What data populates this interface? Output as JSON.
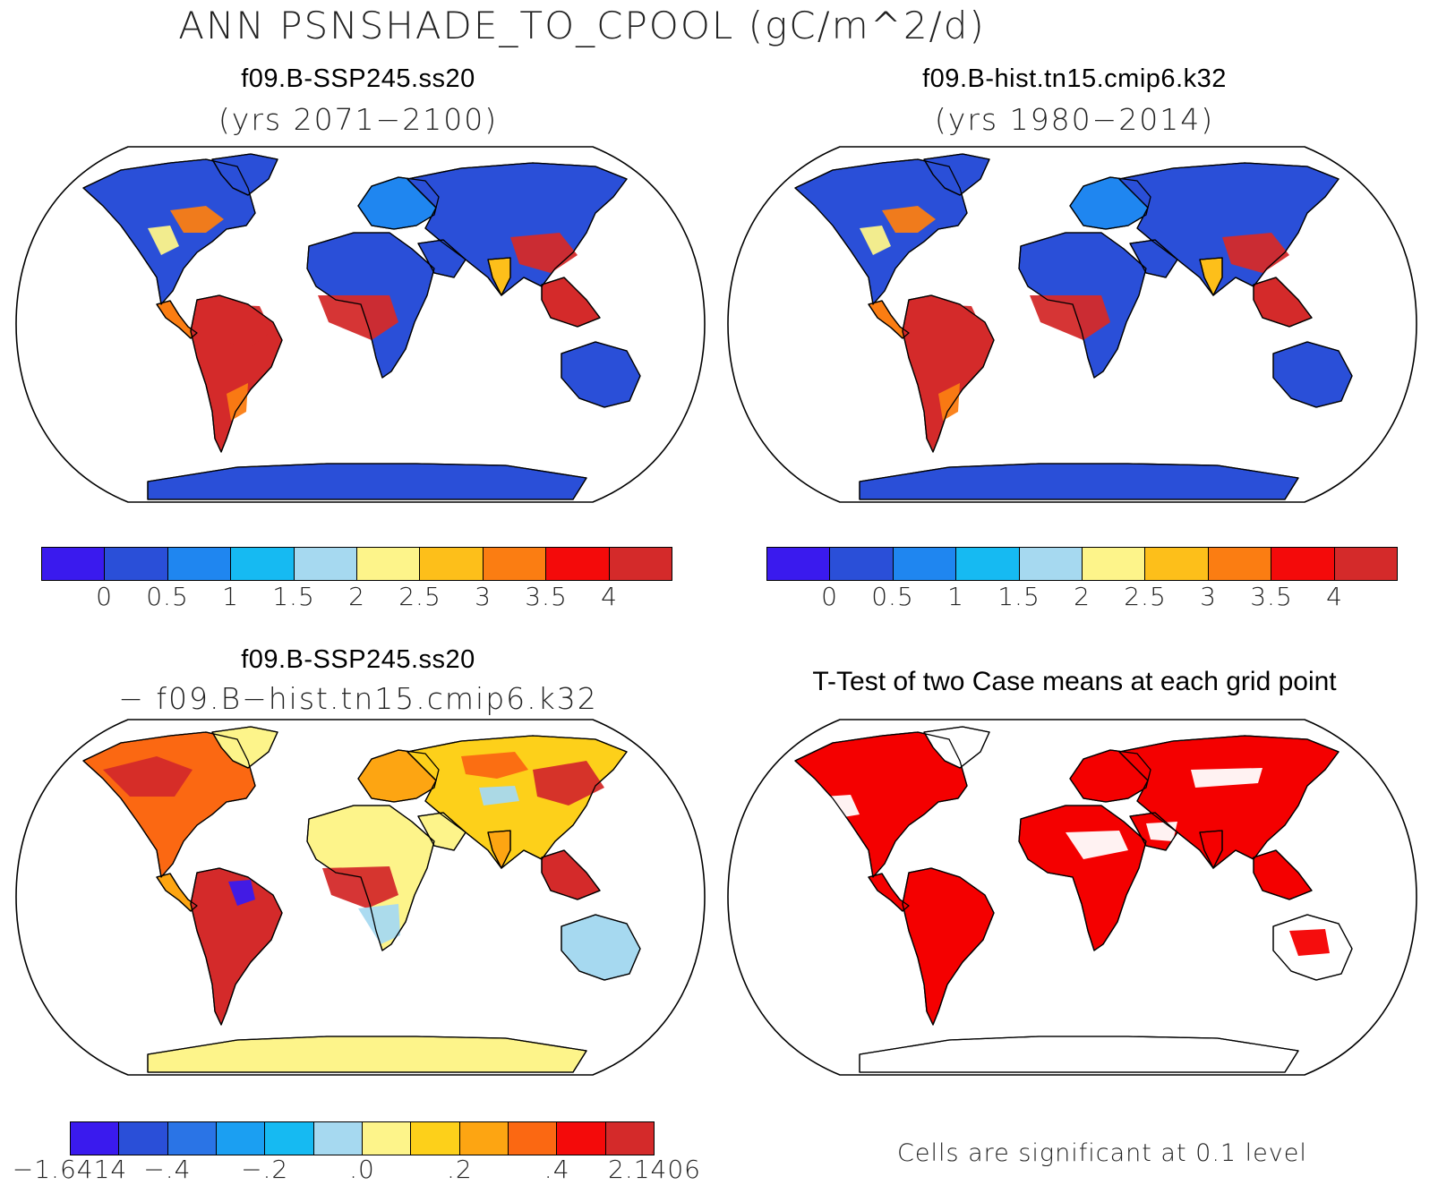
{
  "title": "ANN PSNSHADE_TO_CPOOL (gC/m^2/d)",
  "panels": {
    "top_left": {
      "name": "f09.B-SSP245.ss20",
      "years": "(yrs 2071−2100)"
    },
    "top_right": {
      "name": "f09.B-hist.tn15.cmip6.k32",
      "years": "(yrs 1980−2014)"
    },
    "bottom_left": {
      "name": "f09.B-SSP245.ss20",
      "minus": "− f09.B−hist.tn15.cmip6.k32"
    },
    "bottom_right": {
      "title": "T-Test of two Case means at each grid point",
      "note": "Cells are significant at 0.1 level"
    }
  },
  "colorbar_abs": {
    "colors": [
      "#3a1aee",
      "#2a4fd8",
      "#1f86f0",
      "#16baf2",
      "#a6d9f0",
      "#fdf48a",
      "#fdbf1a",
      "#fb7d12",
      "#f40a0a",
      "#d42a2a"
    ],
    "labels": [
      "0",
      "0.5",
      "1",
      "1.5",
      "2",
      "2.5",
      "3",
      "3.5",
      "4"
    ]
  },
  "colorbar_diff": {
    "colors": [
      "#3a1aee",
      "#2a4fd8",
      "#2a74e6",
      "#1b9ff2",
      "#16baf2",
      "#a6d9f0",
      "#fdf48a",
      "#fdd01a",
      "#fda512",
      "#fb6812",
      "#f40a0a",
      "#d42a2a"
    ],
    "labels": [
      "−1.6414",
      "−.4",
      "−.2",
      ".0",
      ".2",
      ".4",
      "2.1406"
    ]
  },
  "ttest_color": "#f40000"
}
